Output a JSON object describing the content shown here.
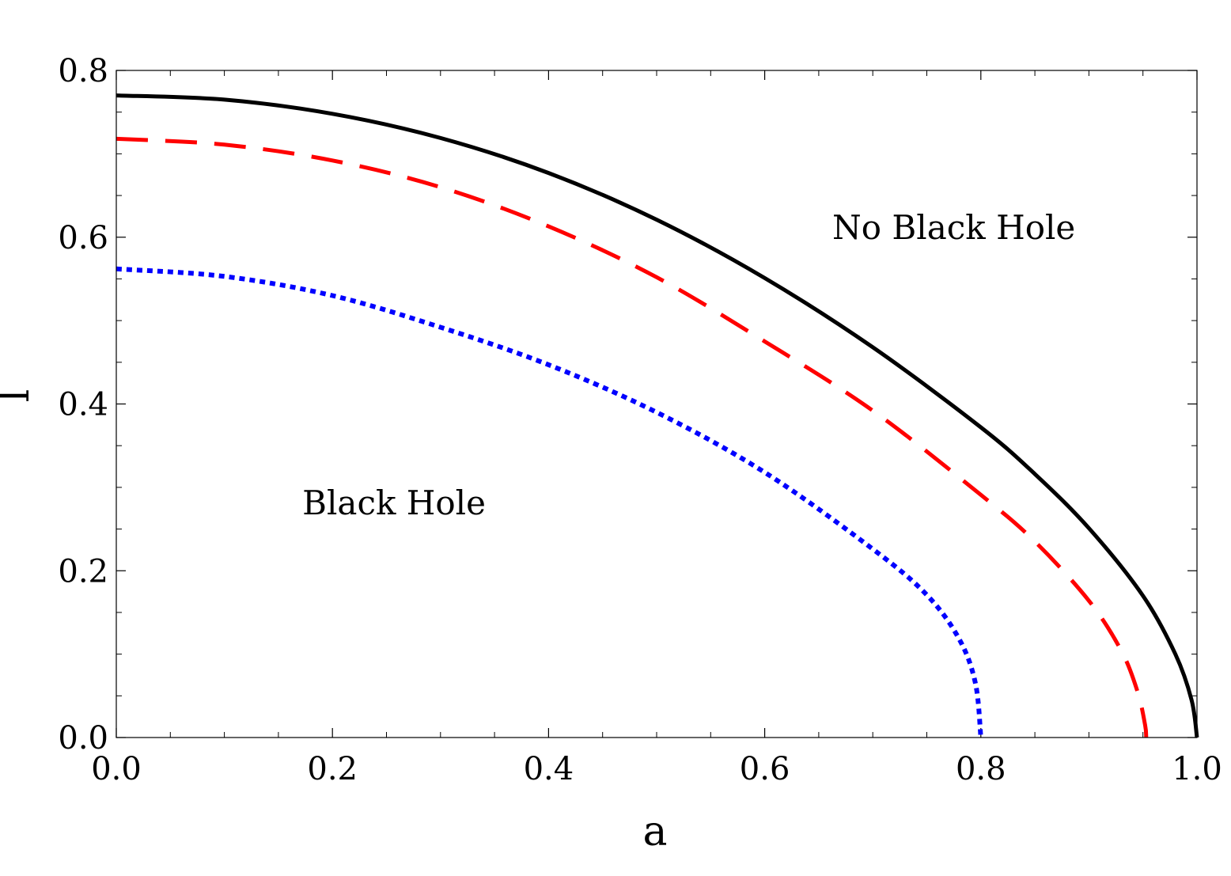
{
  "chart_data": {
    "type": "line",
    "title": "",
    "xlabel": "a",
    "ylabel": "l",
    "xlim": [
      0.0,
      1.0
    ],
    "ylim": [
      0.0,
      0.8
    ],
    "x_ticks": [
      "0.0",
      "0.2",
      "0.4",
      "0.6",
      "0.8",
      "1.0"
    ],
    "y_ticks": [
      "0.0",
      "0.2",
      "0.4",
      "0.6",
      "0.8"
    ],
    "grid": false,
    "annotations": [
      {
        "text": "No Black Hole",
        "x": 0.775,
        "y": 0.612
      },
      {
        "text": "Black Hole",
        "x": 0.257,
        "y": 0.282
      }
    ],
    "series": [
      {
        "style": "solid",
        "color": "#000000",
        "points": [
          [
            0.0,
            0.77
          ],
          [
            0.1,
            0.765
          ],
          [
            0.2,
            0.748
          ],
          [
            0.3,
            0.719
          ],
          [
            0.4,
            0.677
          ],
          [
            0.5,
            0.621
          ],
          [
            0.6,
            0.551
          ],
          [
            0.7,
            0.468
          ],
          [
            0.8,
            0.372
          ],
          [
            0.85,
            0.316
          ],
          [
            0.9,
            0.251
          ],
          [
            0.95,
            0.17
          ],
          [
            0.98,
            0.1
          ],
          [
            0.995,
            0.045
          ],
          [
            1.0,
            0.0
          ]
        ]
      },
      {
        "style": "dashed",
        "color": "#ff0000",
        "points": [
          [
            0.0,
            0.718
          ],
          [
            0.1,
            0.711
          ],
          [
            0.2,
            0.692
          ],
          [
            0.3,
            0.66
          ],
          [
            0.4,
            0.613
          ],
          [
            0.5,
            0.552
          ],
          [
            0.6,
            0.475
          ],
          [
            0.7,
            0.392
          ],
          [
            0.8,
            0.291
          ],
          [
            0.85,
            0.235
          ],
          [
            0.9,
            0.164
          ],
          [
            0.93,
            0.104
          ],
          [
            0.945,
            0.055
          ],
          [
            0.952,
            0.015
          ],
          [
            0.953,
            0.0
          ]
        ]
      },
      {
        "style": "dotted",
        "color": "#0000ff",
        "points": [
          [
            0.0,
            0.562
          ],
          [
            0.1,
            0.553
          ],
          [
            0.2,
            0.53
          ],
          [
            0.3,
            0.492
          ],
          [
            0.4,
            0.447
          ],
          [
            0.5,
            0.39
          ],
          [
            0.6,
            0.318
          ],
          [
            0.7,
            0.226
          ],
          [
            0.75,
            0.171
          ],
          [
            0.78,
            0.118
          ],
          [
            0.795,
            0.065
          ],
          [
            0.8,
            0.0
          ]
        ]
      }
    ]
  }
}
